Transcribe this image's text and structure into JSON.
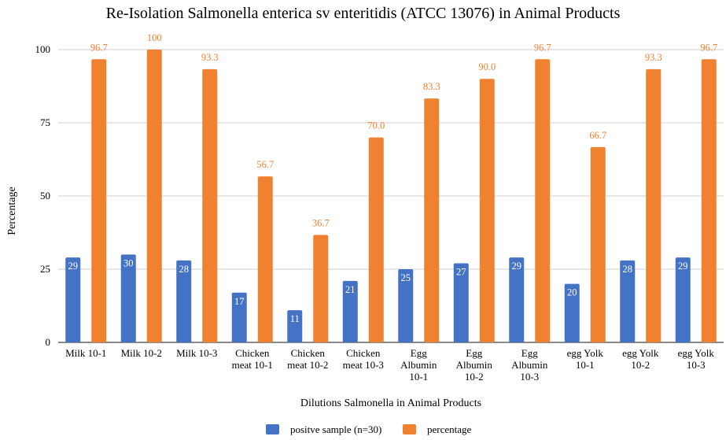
{
  "chart_data": {
    "type": "bar",
    "title": "Re-Isolation Salmonella enterica sv enteritidis (ATCC 13076) in Animal Products",
    "xlabel": "Dilutions Salmonella in Animal Products",
    "ylabel": "Percentage",
    "ylim": [
      0,
      100
    ],
    "yticks": [
      0,
      25,
      50,
      75,
      100
    ],
    "grid": true,
    "legend_position": "bottom",
    "categories": [
      [
        "Milk 10-1"
      ],
      [
        "Milk 10-2"
      ],
      [
        "Milk 10-3"
      ],
      [
        "Chicken",
        "meat 10-1"
      ],
      [
        "Chicken",
        "meat 10-2"
      ],
      [
        "Chicken",
        "meat 10-3"
      ],
      [
        "Egg",
        "Albumin",
        "10-1"
      ],
      [
        "Egg",
        "Albumin",
        "10-2"
      ],
      [
        "Egg",
        "Albumin",
        "10-3"
      ],
      [
        "egg Yolk",
        "10-1"
      ],
      [
        "egg Yolk",
        "10-2"
      ],
      [
        "egg Yolk",
        "10-3"
      ]
    ],
    "series": [
      {
        "name": "positve sample (n=30)",
        "color": "#4472c4",
        "values": [
          29,
          30,
          28,
          17,
          11,
          21,
          25,
          27,
          29,
          20,
          28,
          29
        ],
        "labels": [
          "29",
          "30",
          "28",
          "17",
          "11",
          "21",
          "25",
          "27",
          "29",
          "20",
          "28",
          "29"
        ]
      },
      {
        "name": "percentage",
        "color": "#ef8131",
        "values": [
          96.7,
          100,
          93.3,
          56.7,
          36.7,
          70.0,
          83.3,
          90.0,
          96.7,
          66.7,
          93.3,
          96.7
        ],
        "labels": [
          "96.7",
          "100",
          "93.3",
          "56.7",
          "36.7",
          "70.0",
          "83.3",
          "90.0",
          "96.7",
          "66.7",
          "93.3",
          "96.7"
        ]
      }
    ]
  }
}
